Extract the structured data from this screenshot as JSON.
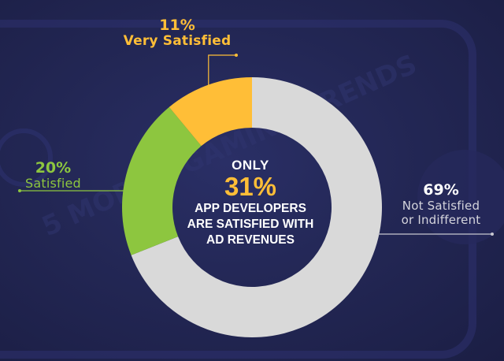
{
  "colors": {
    "background": "#232755",
    "very_satisfied": "#ffbe37",
    "satisfied": "#8dc63f",
    "not_satisfied": "#d9d9d9",
    "accent_text": "#ffbe37"
  },
  "watermark": "5 MOBILE GAMING TRENDS",
  "center": {
    "intro": "ONLY",
    "highlight": "31%",
    "caption_lines": [
      "APP DEVELOPERS",
      "ARE SATISFIED WITH",
      "AD REVENUES"
    ]
  },
  "chart_data": {
    "type": "pie",
    "title": "",
    "slices": [
      {
        "label": "Very Satisfied",
        "value": 11,
        "display": "11%",
        "color": "#ffbe37"
      },
      {
        "label": "Satisfied",
        "value": 20,
        "display": "20%",
        "color": "#8dc63f"
      },
      {
        "label_lines": [
          "Not Satisfied",
          "or Indifferent"
        ],
        "label": "Not Satisfied or Indifferent",
        "value": 69,
        "display": "69%",
        "color": "#d9d9d9"
      }
    ],
    "legend": "none"
  }
}
